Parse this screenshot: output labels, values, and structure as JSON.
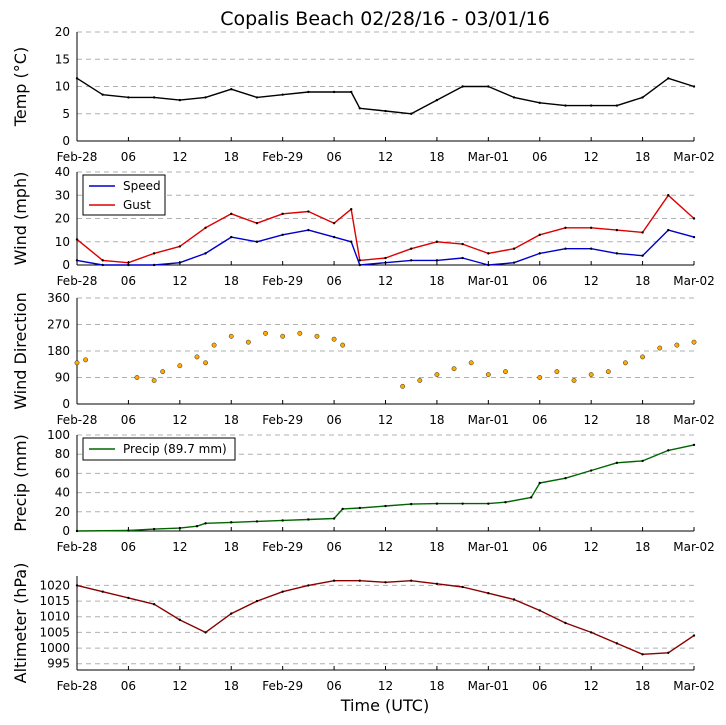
{
  "title": "Copalis Beach 02/28/16 - 03/01/16",
  "x_axis_label": "Time (UTC)",
  "x_tick_labels": [
    "Feb-28",
    "06",
    "12",
    "18",
    "Feb-29",
    "06",
    "12",
    "18",
    "Mar-01",
    "06",
    "12",
    "18",
    "Mar-02"
  ],
  "colors": {
    "temp": "#000000",
    "speed": "#0000cc",
    "gust": "#dd0000",
    "direction": "#ffaa00",
    "precip": "#006600",
    "altimeter": "#880000",
    "grid": "#b0b0b0"
  },
  "chart_data": [
    {
      "type": "line",
      "id": "temp",
      "ylabel": "Temp (°C)",
      "ylim": [
        0,
        20
      ],
      "yticks": [
        0,
        5,
        10,
        15,
        20
      ],
      "x_hours": [
        0,
        3,
        6,
        9,
        12,
        15,
        18,
        21,
        24,
        27,
        30,
        32,
        33,
        36,
        39,
        42,
        45,
        48,
        51,
        54,
        57,
        60,
        63,
        66,
        69,
        72
      ],
      "series": [
        {
          "name": "Temp",
          "values": [
            11.5,
            8.5,
            8,
            8,
            7.5,
            8,
            9.5,
            8,
            8.5,
            9,
            9,
            9,
            6,
            5.5,
            5,
            7.5,
            10,
            10,
            8,
            7,
            6.5,
            6.5,
            6.5,
            8,
            11.5,
            10
          ]
        }
      ]
    },
    {
      "type": "line",
      "id": "wind",
      "ylabel": "Wind (mph)",
      "ylim": [
        0,
        40
      ],
      "yticks": [
        0,
        10,
        20,
        30,
        40
      ],
      "legend": "top-left",
      "x_hours": [
        0,
        3,
        6,
        9,
        12,
        15,
        18,
        21,
        24,
        27,
        30,
        32,
        33,
        36,
        39,
        42,
        45,
        48,
        51,
        54,
        57,
        60,
        63,
        66,
        69,
        72
      ],
      "series": [
        {
          "name": "Speed",
          "values": [
            2,
            0,
            0,
            0,
            1,
            5,
            12,
            10,
            13,
            15,
            12,
            10,
            0,
            1,
            2,
            2,
            3,
            0,
            1,
            5,
            7,
            7,
            5,
            4,
            15,
            12
          ]
        },
        {
          "name": "Gust",
          "values": [
            11,
            2,
            1,
            5,
            8,
            16,
            22,
            18,
            22,
            23,
            18,
            24,
            2,
            3,
            7,
            10,
            9,
            5,
            7,
            13,
            16,
            16,
            15,
            14,
            30,
            20
          ]
        }
      ]
    },
    {
      "type": "scatter",
      "id": "direction",
      "ylabel": "Wind Direction",
      "ylim": [
        0,
        360
      ],
      "yticks": [
        0,
        90,
        180,
        270,
        360
      ],
      "x_hours": [
        0,
        1,
        7,
        9,
        10,
        12,
        14,
        15,
        16,
        18,
        20,
        22,
        24,
        26,
        28,
        30,
        31,
        38,
        40,
        42,
        44,
        46,
        48,
        50,
        54,
        56,
        58,
        60,
        62,
        64,
        66,
        68,
        70,
        72
      ],
      "series": [
        {
          "name": "Direction",
          "values": [
            140,
            150,
            90,
            80,
            110,
            130,
            160,
            140,
            200,
            230,
            210,
            240,
            230,
            240,
            230,
            220,
            200,
            60,
            80,
            100,
            120,
            140,
            100,
            110,
            90,
            110,
            80,
            100,
            110,
            140,
            160,
            190,
            200,
            210
          ]
        }
      ]
    },
    {
      "type": "line",
      "id": "precip",
      "ylabel": "Precip (mm)",
      "ylim": [
        0,
        100
      ],
      "yticks": [
        0,
        20,
        40,
        60,
        80,
        100
      ],
      "legend": "top-left",
      "x_hours": [
        0,
        6,
        9,
        12,
        14,
        15,
        18,
        21,
        24,
        27,
        30,
        31,
        33,
        36,
        39,
        42,
        45,
        48,
        50,
        53,
        54,
        57,
        60,
        63,
        66,
        69,
        72
      ],
      "series": [
        {
          "name": "Precip (89.7 mm)",
          "values": [
            0,
            0.5,
            2,
            3,
            5,
            8,
            9,
            10,
            11,
            12,
            13,
            23,
            24,
            26,
            28,
            28.5,
            28.5,
            28.5,
            30,
            35,
            50,
            55,
            63,
            71,
            73,
            84,
            89.7
          ]
        }
      ]
    },
    {
      "type": "line",
      "id": "altimeter",
      "ylabel": "Altimeter (hPa)",
      "ylim": [
        993,
        1023
      ],
      "yticks": [
        995,
        1000,
        1005,
        1010,
        1015,
        1020
      ],
      "x_hours": [
        0,
        3,
        6,
        9,
        12,
        15,
        18,
        21,
        24,
        27,
        30,
        33,
        36,
        39,
        42,
        45,
        48,
        51,
        54,
        57,
        60,
        63,
        66,
        69,
        72
      ],
      "series": [
        {
          "name": "Altimeter",
          "values": [
            1020,
            1018,
            1016,
            1014,
            1009,
            1005,
            1011,
            1015,
            1018,
            1020,
            1021.5,
            1021.5,
            1021,
            1021.5,
            1020.5,
            1019.5,
            1017.5,
            1015.5,
            1012,
            1008,
            1005,
            1001.5,
            998,
            998.5,
            1004
          ]
        }
      ]
    }
  ]
}
